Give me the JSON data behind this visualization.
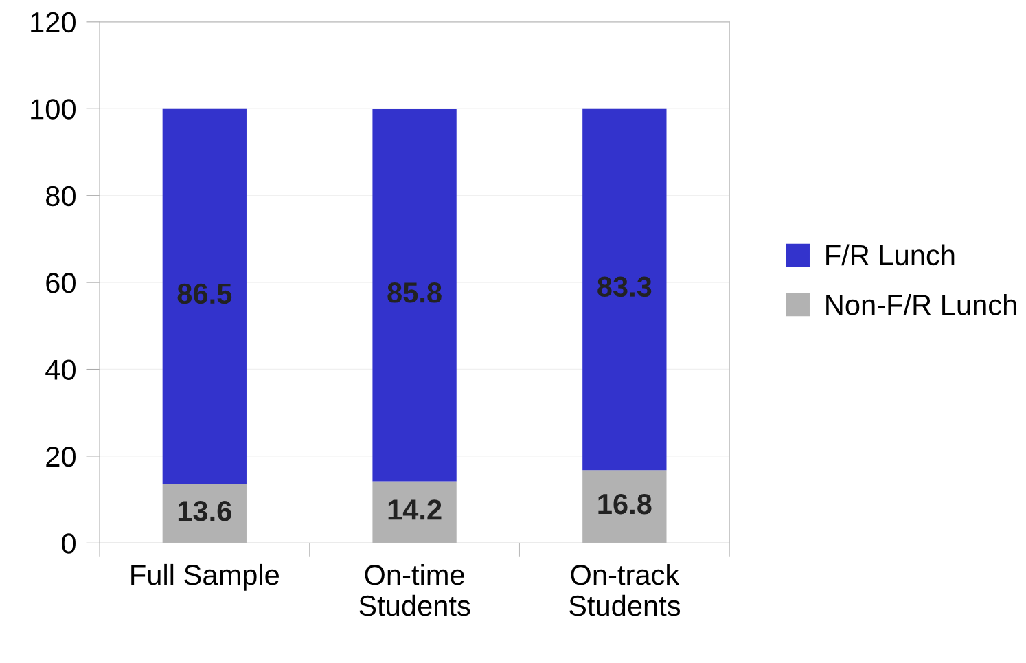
{
  "chart_data": {
    "type": "bar",
    "stacked": true,
    "categories": [
      "Full Sample",
      "On-time\nStudents",
      "On-track\nStudents"
    ],
    "series": [
      {
        "name": "Non-F/R Lunch",
        "color": "#b2b2b2",
        "values": [
          13.6,
          14.2,
          16.8
        ]
      },
      {
        "name": "F/R Lunch",
        "color": "#3333cc",
        "values": [
          86.5,
          85.8,
          83.3
        ]
      }
    ],
    "ylim": [
      0,
      120
    ],
    "yticks": [
      0,
      20,
      40,
      60,
      80,
      100,
      120
    ],
    "grid": "y",
    "legend": "right",
    "data_labels": true
  }
}
